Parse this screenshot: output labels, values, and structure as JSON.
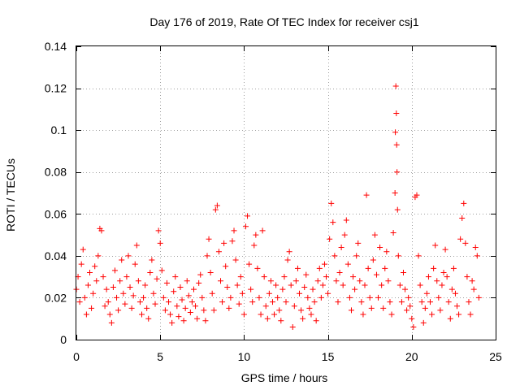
{
  "chart_data": {
    "type": "scatter",
    "title": "Day 176 of 2019, Rate Of TEC Index for receiver csj1",
    "xlabel": "GPS time / hours",
    "ylabel": "ROTI / TECUs",
    "xlim": [
      0,
      25
    ],
    "ylim": [
      0,
      0.14
    ],
    "grid": true,
    "marker": "+",
    "color": "#ff0000",
    "x_ticks": [
      "0",
      "5",
      "10",
      "15",
      "20",
      "25"
    ],
    "y_ticks": [
      "0",
      "0.02",
      "0.04",
      "0.06",
      "0.08",
      "0.1",
      "0.12",
      "0.14"
    ],
    "x_tick_values": [
      0,
      5,
      10,
      15,
      20,
      25
    ],
    "y_tick_values": [
      0,
      0.02,
      0.04,
      0.06,
      0.08,
      0.1,
      0.12,
      0.14
    ],
    "series": [
      {
        "name": "ROTI",
        "points": [
          [
            0.0,
            0.024
          ],
          [
            0.1,
            0.03
          ],
          [
            0.2,
            0.018
          ],
          [
            0.3,
            0.036
          ],
          [
            0.4,
            0.043
          ],
          [
            0.5,
            0.02
          ],
          [
            0.6,
            0.012
          ],
          [
            0.7,
            0.026
          ],
          [
            0.8,
            0.032
          ],
          [
            0.9,
            0.015
          ],
          [
            1.0,
            0.022
          ],
          [
            1.1,
            0.035
          ],
          [
            1.2,
            0.028
          ],
          [
            1.3,
            0.04
          ],
          [
            1.4,
            0.053
          ],
          [
            1.5,
            0.052
          ],
          [
            1.6,
            0.03
          ],
          [
            1.7,
            0.016
          ],
          [
            1.8,
            0.024
          ],
          [
            1.9,
            0.018
          ],
          [
            2.0,
            0.012
          ],
          [
            2.1,
            0.008
          ],
          [
            2.2,
            0.025
          ],
          [
            2.3,
            0.033
          ],
          [
            2.4,
            0.02
          ],
          [
            2.5,
            0.014
          ],
          [
            2.6,
            0.028
          ],
          [
            2.7,
            0.038
          ],
          [
            2.8,
            0.022
          ],
          [
            2.9,
            0.017
          ],
          [
            3.0,
            0.03
          ],
          [
            3.1,
            0.04
          ],
          [
            3.2,
            0.025
          ],
          [
            3.3,
            0.015
          ],
          [
            3.4,
            0.021
          ],
          [
            3.5,
            0.036
          ],
          [
            3.6,
            0.045
          ],
          [
            3.7,
            0.028
          ],
          [
            3.8,
            0.018
          ],
          [
            3.9,
            0.012
          ],
          [
            4.0,
            0.02
          ],
          [
            4.1,
            0.026
          ],
          [
            4.2,
            0.015
          ],
          [
            4.3,
            0.01
          ],
          [
            4.4,
            0.032
          ],
          [
            4.5,
            0.038
          ],
          [
            4.6,
            0.022
          ],
          [
            4.7,
            0.017
          ],
          [
            4.8,
            0.029
          ],
          [
            4.9,
            0.052
          ],
          [
            5.0,
            0.046
          ],
          [
            5.1,
            0.033
          ],
          [
            5.2,
            0.02
          ],
          [
            5.3,
            0.014
          ],
          [
            5.4,
            0.027
          ],
          [
            5.5,
            0.018
          ],
          [
            5.6,
            0.012
          ],
          [
            5.7,
            0.008
          ],
          [
            5.8,
            0.023
          ],
          [
            5.9,
            0.03
          ],
          [
            6.0,
            0.016
          ],
          [
            6.1,
            0.011
          ],
          [
            6.2,
            0.025
          ],
          [
            6.3,
            0.019
          ],
          [
            6.4,
            0.009
          ],
          [
            6.5,
            0.015
          ],
          [
            6.6,
            0.028
          ],
          [
            6.7,
            0.021
          ],
          [
            6.8,
            0.013
          ],
          [
            6.9,
            0.018
          ],
          [
            7.0,
            0.024
          ],
          [
            7.1,
            0.016
          ],
          [
            7.2,
            0.01
          ],
          [
            7.3,
            0.027
          ],
          [
            7.4,
            0.031
          ],
          [
            7.5,
            0.02
          ],
          [
            7.6,
            0.014
          ],
          [
            7.7,
            0.009
          ],
          [
            7.8,
            0.04
          ],
          [
            7.9,
            0.048
          ],
          [
            8.0,
            0.032
          ],
          [
            8.1,
            0.022
          ],
          [
            8.2,
            0.014
          ],
          [
            8.3,
            0.062
          ],
          [
            8.4,
            0.064
          ],
          [
            8.5,
            0.042
          ],
          [
            8.6,
            0.028
          ],
          [
            8.7,
            0.018
          ],
          [
            8.8,
            0.046
          ],
          [
            8.9,
            0.035
          ],
          [
            9.0,
            0.025
          ],
          [
            9.1,
            0.015
          ],
          [
            9.2,
            0.02
          ],
          [
            9.3,
            0.047
          ],
          [
            9.4,
            0.052
          ],
          [
            9.5,
            0.038
          ],
          [
            9.6,
            0.026
          ],
          [
            9.7,
            0.017
          ],
          [
            9.8,
            0.03
          ],
          [
            9.9,
            0.022
          ],
          [
            10.0,
            0.012
          ],
          [
            10.1,
            0.054
          ],
          [
            10.2,
            0.059
          ],
          [
            10.3,
            0.036
          ],
          [
            10.4,
            0.024
          ],
          [
            10.5,
            0.018
          ],
          [
            10.6,
            0.045
          ],
          [
            10.7,
            0.05
          ],
          [
            10.8,
            0.034
          ],
          [
            10.9,
            0.02
          ],
          [
            11.0,
            0.012
          ],
          [
            11.1,
            0.052
          ],
          [
            11.2,
            0.03
          ],
          [
            11.3,
            0.016
          ],
          [
            11.4,
            0.01
          ],
          [
            11.5,
            0.022
          ],
          [
            11.6,
            0.028
          ],
          [
            11.7,
            0.018
          ],
          [
            11.8,
            0.012
          ],
          [
            11.9,
            0.026
          ],
          [
            12.0,
            0.02
          ],
          [
            12.1,
            0.014
          ],
          [
            12.2,
            0.009
          ],
          [
            12.3,
            0.024
          ],
          [
            12.4,
            0.03
          ],
          [
            12.5,
            0.018
          ],
          [
            12.6,
            0.038
          ],
          [
            12.7,
            0.042
          ],
          [
            12.8,
            0.026
          ],
          [
            12.9,
            0.006
          ],
          [
            13.0,
            0.016
          ],
          [
            13.1,
            0.028
          ],
          [
            13.2,
            0.034
          ],
          [
            13.3,
            0.022
          ],
          [
            13.4,
            0.014
          ],
          [
            13.5,
            0.01
          ],
          [
            13.6,
            0.025
          ],
          [
            13.7,
            0.031
          ],
          [
            13.8,
            0.02
          ],
          [
            13.9,
            0.015
          ],
          [
            14.0,
            0.012
          ],
          [
            14.1,
            0.024
          ],
          [
            14.2,
            0.018
          ],
          [
            14.3,
            0.009
          ],
          [
            14.4,
            0.028
          ],
          [
            14.5,
            0.034
          ],
          [
            14.6,
            0.02
          ],
          [
            14.7,
            0.026
          ],
          [
            14.8,
            0.036
          ],
          [
            14.9,
            0.03
          ],
          [
            15.0,
            0.022
          ],
          [
            15.1,
            0.048
          ],
          [
            15.2,
            0.065
          ],
          [
            15.3,
            0.056
          ],
          [
            15.4,
            0.04
          ],
          [
            15.5,
            0.028
          ],
          [
            15.6,
            0.018
          ],
          [
            15.7,
            0.032
          ],
          [
            15.8,
            0.044
          ],
          [
            15.9,
            0.026
          ],
          [
            16.0,
            0.05
          ],
          [
            16.1,
            0.057
          ],
          [
            16.2,
            0.036
          ],
          [
            16.3,
            0.02
          ],
          [
            16.4,
            0.014
          ],
          [
            16.5,
            0.03
          ],
          [
            16.6,
            0.024
          ],
          [
            16.7,
            0.04
          ],
          [
            16.8,
            0.046
          ],
          [
            16.9,
            0.028
          ],
          [
            17.0,
            0.018
          ],
          [
            17.1,
            0.012
          ],
          [
            17.2,
            0.026
          ],
          [
            17.3,
            0.069
          ],
          [
            17.4,
            0.034
          ],
          [
            17.5,
            0.02
          ],
          [
            17.6,
            0.015
          ],
          [
            17.7,
            0.038
          ],
          [
            17.8,
            0.05
          ],
          [
            17.9,
            0.031
          ],
          [
            18.0,
            0.02
          ],
          [
            18.1,
            0.044
          ],
          [
            18.2,
            0.026
          ],
          [
            18.3,
            0.015
          ],
          [
            18.4,
            0.034
          ],
          [
            18.5,
            0.042
          ],
          [
            18.6,
            0.028
          ],
          [
            18.7,
            0.018
          ],
          [
            18.8,
            0.012
          ],
          [
            18.9,
            0.051
          ],
          [
            19.0,
            0.07
          ],
          [
            19.02,
            0.099
          ],
          [
            19.05,
            0.121
          ],
          [
            19.08,
            0.108
          ],
          [
            19.1,
            0.093
          ],
          [
            19.12,
            0.08
          ],
          [
            19.15,
            0.062
          ],
          [
            19.2,
            0.04
          ],
          [
            19.3,
            0.026
          ],
          [
            19.4,
            0.018
          ],
          [
            19.5,
            0.032
          ],
          [
            19.6,
            0.024
          ],
          [
            19.7,
            0.014
          ],
          [
            19.8,
            0.02
          ],
          [
            19.9,
            0.016
          ],
          [
            20.0,
            0.01
          ],
          [
            20.1,
            0.006
          ],
          [
            20.2,
            0.068
          ],
          [
            20.3,
            0.069
          ],
          [
            20.4,
            0.04
          ],
          [
            20.5,
            0.026
          ],
          [
            20.6,
            0.018
          ],
          [
            20.7,
            0.008
          ],
          [
            20.8,
            0.015
          ],
          [
            20.9,
            0.022
          ],
          [
            21.0,
            0.03
          ],
          [
            21.1,
            0.018
          ],
          [
            21.2,
            0.012
          ],
          [
            21.3,
            0.034
          ],
          [
            21.4,
            0.045
          ],
          [
            21.5,
            0.028
          ],
          [
            21.6,
            0.02
          ],
          [
            21.7,
            0.014
          ],
          [
            21.8,
            0.026
          ],
          [
            21.9,
            0.032
          ],
          [
            22.0,
            0.043
          ],
          [
            22.1,
            0.03
          ],
          [
            22.2,
            0.018
          ],
          [
            22.3,
            0.01
          ],
          [
            22.4,
            0.024
          ],
          [
            22.5,
            0.034
          ],
          [
            22.6,
            0.022
          ],
          [
            22.7,
            0.016
          ],
          [
            22.8,
            0.012
          ],
          [
            22.9,
            0.048
          ],
          [
            23.0,
            0.058
          ],
          [
            23.1,
            0.065
          ],
          [
            23.2,
            0.046
          ],
          [
            23.3,
            0.03
          ],
          [
            23.4,
            0.018
          ],
          [
            23.5,
            0.012
          ],
          [
            23.6,
            0.028
          ],
          [
            23.7,
            0.024
          ],
          [
            23.8,
            0.044
          ],
          [
            23.9,
            0.04
          ],
          [
            24.0,
            0.02
          ]
        ]
      }
    ]
  }
}
